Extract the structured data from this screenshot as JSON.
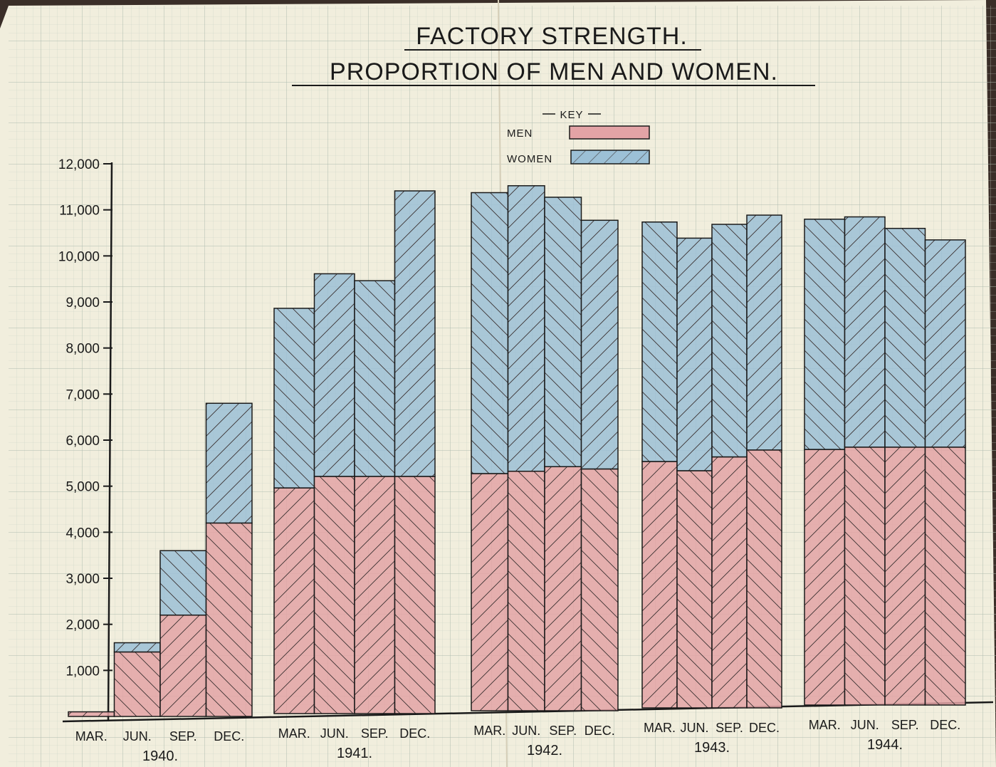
{
  "chart_data": {
    "type": "bar",
    "stacked": true,
    "title": "FACTORY STRENGTH.",
    "subtitle": "PROPORTION OF MEN AND WOMEN.",
    "legend": {
      "heading": "KEY",
      "placement": "top-center",
      "entries": [
        {
          "label": "MEN",
          "color": "#e3a3a6"
        },
        {
          "label": "WOMEN",
          "color": "#9cc0d6"
        }
      ]
    },
    "ylim": [
      0,
      12000
    ],
    "yticks": [
      {
        "v": 1000,
        "label": "1,000"
      },
      {
        "v": 2000,
        "label": "2,000"
      },
      {
        "v": 3000,
        "label": "3,000"
      },
      {
        "v": 4000,
        "label": "4,000"
      },
      {
        "v": 5000,
        "label": "5,000"
      },
      {
        "v": 6000,
        "label": "6,000"
      },
      {
        "v": 7000,
        "label": "7,000"
      },
      {
        "v": 8000,
        "label": "8,000"
      },
      {
        "v": 9000,
        "label": "9,000"
      },
      {
        "v": 10000,
        "label": "10,000"
      },
      {
        "v": 11000,
        "label": "11,000"
      },
      {
        "v": 12000,
        "label": "12,000"
      }
    ],
    "quarters": [
      "MAR.",
      "JUN.",
      "SEP.",
      "DEC."
    ],
    "groups": [
      {
        "year": "1940.",
        "men": [
          100,
          1400,
          2200,
          4200
        ],
        "women": [
          0,
          200,
          1400,
          2600
        ]
      },
      {
        "year": "1941.",
        "men": [
          4900,
          5150,
          5150,
          5150
        ],
        "women": [
          3900,
          4400,
          4250,
          6200
        ]
      },
      {
        "year": "1942.",
        "men": [
          5150,
          5200,
          5300,
          5250
        ],
        "women": [
          6100,
          6200,
          5850,
          5400
        ]
      },
      {
        "year": "1943.",
        "men": [
          5350,
          5150,
          5450,
          5600
        ],
        "women": [
          5200,
          5050,
          5050,
          5100
        ]
      },
      {
        "year": "1944.",
        "men": [
          5550,
          5600,
          5600,
          5600
        ],
        "women": [
          5000,
          5000,
          4750,
          4500
        ]
      }
    ]
  }
}
